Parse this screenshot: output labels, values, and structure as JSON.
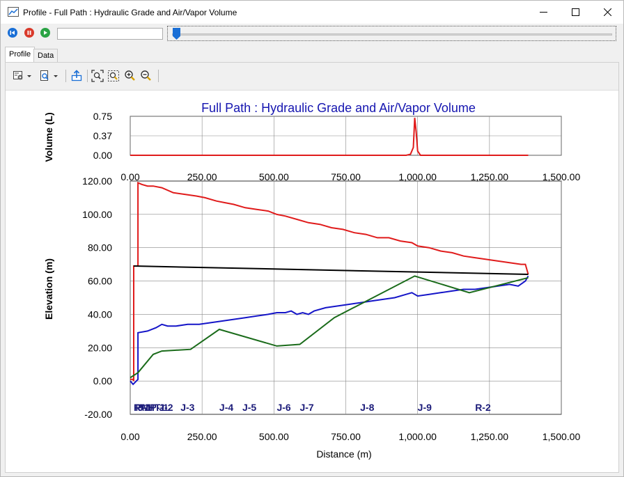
{
  "window": {
    "title": "Profile - Full Path : Hydraulic Grade and Air/Vapor Volume",
    "minimize_icon": "minimize-icon",
    "maximize_icon": "maximize-icon",
    "close_icon": "close-icon"
  },
  "playback": {
    "time_value": "",
    "slider_value": 0
  },
  "tabs": [
    {
      "label": "Profile",
      "active": true
    },
    {
      "label": "Data",
      "active": false
    }
  ],
  "toolbar": {
    "icons": [
      "chart-options-icon",
      "print-preview-icon",
      "export-icon",
      "zoom-extents-icon",
      "zoom-window-icon",
      "zoom-in-icon",
      "zoom-out-icon"
    ]
  },
  "chart_data": [
    {
      "type": "line",
      "title": "Full Path : Hydraulic Grade and Air/Vapor Volume",
      "ylabel": "Volume (L)",
      "xlim": [
        0,
        1500
      ],
      "ylim": [
        0,
        0.75
      ],
      "yticks": [
        "0.75",
        "0.37",
        "0.00"
      ],
      "xticks": [
        "0.00",
        "250.00",
        "500.00",
        "750.00",
        "1,000.00",
        "1,250.00",
        "1,500.00"
      ],
      "grid": true,
      "series": [
        {
          "color": "#e01b1b",
          "x": [
            0,
            960,
            975,
            985,
            990,
            995,
            1000,
            1010,
            1385
          ],
          "y": [
            0,
            0,
            0.02,
            0.15,
            0.72,
            0.45,
            0.08,
            0,
            0
          ]
        }
      ]
    },
    {
      "type": "line",
      "ylabel": "Elevation (m)",
      "xlabel": "Distance (m)",
      "xlim": [
        0,
        1500
      ],
      "ylim": [
        -20,
        120
      ],
      "yticks": [
        "120.00",
        "100.00",
        "80.00",
        "60.00",
        "40.00",
        "20.00",
        "0.00",
        "-20.00"
      ],
      "xticks": [
        "0.00",
        "250.00",
        "500.00",
        "750.00",
        "1,000.00",
        "1,250.00",
        "1,500.00"
      ],
      "grid": true,
      "series": [
        {
          "color": "#e01b1b",
          "x": [
            0,
            10,
            12,
            12,
            27,
            27,
            40,
            60,
            80,
            110,
            150,
            190,
            230,
            260,
            300,
            330,
            360,
            400,
            440,
            480,
            510,
            540,
            580,
            620,
            660,
            700,
            740,
            780,
            820,
            860,
            900,
            940,
            980,
            1000,
            1040,
            1080,
            1120,
            1160,
            1200,
            1240,
            1280,
            1320,
            1360,
            1375,
            1385
          ],
          "y": [
            1,
            1,
            0,
            69,
            69,
            119,
            118,
            117,
            117,
            116,
            113,
            112,
            111,
            110,
            108,
            107,
            106,
            104,
            103,
            102,
            100,
            99,
            97,
            95,
            94,
            92,
            91,
            89,
            88,
            86,
            86,
            84,
            83,
            81,
            80,
            78,
            77,
            75,
            74,
            73,
            72,
            71,
            70,
            70,
            64
          ]
        },
        {
          "color": "#000000",
          "x": [
            12,
            1385
          ],
          "y": [
            69,
            64
          ]
        },
        {
          "color": "#1515c8",
          "x": [
            0,
            10,
            27,
            27,
            60,
            90,
            110,
            130,
            160,
            200,
            240,
            280,
            320,
            360,
            400,
            440,
            480,
            510,
            540,
            560,
            580,
            600,
            620,
            640,
            680,
            720,
            760,
            800,
            840,
            880,
            920,
            960,
            980,
            1000,
            1040,
            1080,
            1120,
            1160,
            1200,
            1240,
            1280,
            1320,
            1350,
            1375,
            1385
          ],
          "y": [
            0,
            -2,
            1,
            29,
            30,
            32,
            34,
            33,
            33,
            34,
            34,
            35,
            36,
            37,
            38,
            39,
            40,
            41,
            41,
            42,
            40,
            41,
            40,
            42,
            44,
            45,
            46,
            47,
            48,
            49,
            50,
            52,
            53,
            51,
            52,
            53,
            54,
            55,
            55,
            56,
            57,
            58,
            57,
            60,
            63
          ]
        },
        {
          "color": "#1a6b1a",
          "x": [
            0,
            27,
            80,
            110,
            210,
            310,
            510,
            590,
            710,
            990,
            1180,
            1385
          ],
          "y": [
            2,
            5,
            16,
            18,
            19,
            31,
            21,
            22,
            38,
            63,
            53,
            62
          ]
        }
      ],
      "node_labels": [
        {
          "text": "R-1",
          "x": 12
        },
        {
          "text": "PMP-1",
          "x": 18
        },
        {
          "text": "J-1",
          "x": 27
        },
        {
          "text": "HT-1",
          "x": 60
        },
        {
          "text": "J-2",
          "x": 100
        },
        {
          "text": "J-3",
          "x": 175
        },
        {
          "text": "J-4",
          "x": 310
        },
        {
          "text": "J-5",
          "x": 390
        },
        {
          "text": "J-6",
          "x": 510
        },
        {
          "text": "J-7",
          "x": 590
        },
        {
          "text": "J-8",
          "x": 800
        },
        {
          "text": "J-9",
          "x": 1000
        },
        {
          "text": "R-2",
          "x": 1200
        }
      ]
    }
  ]
}
